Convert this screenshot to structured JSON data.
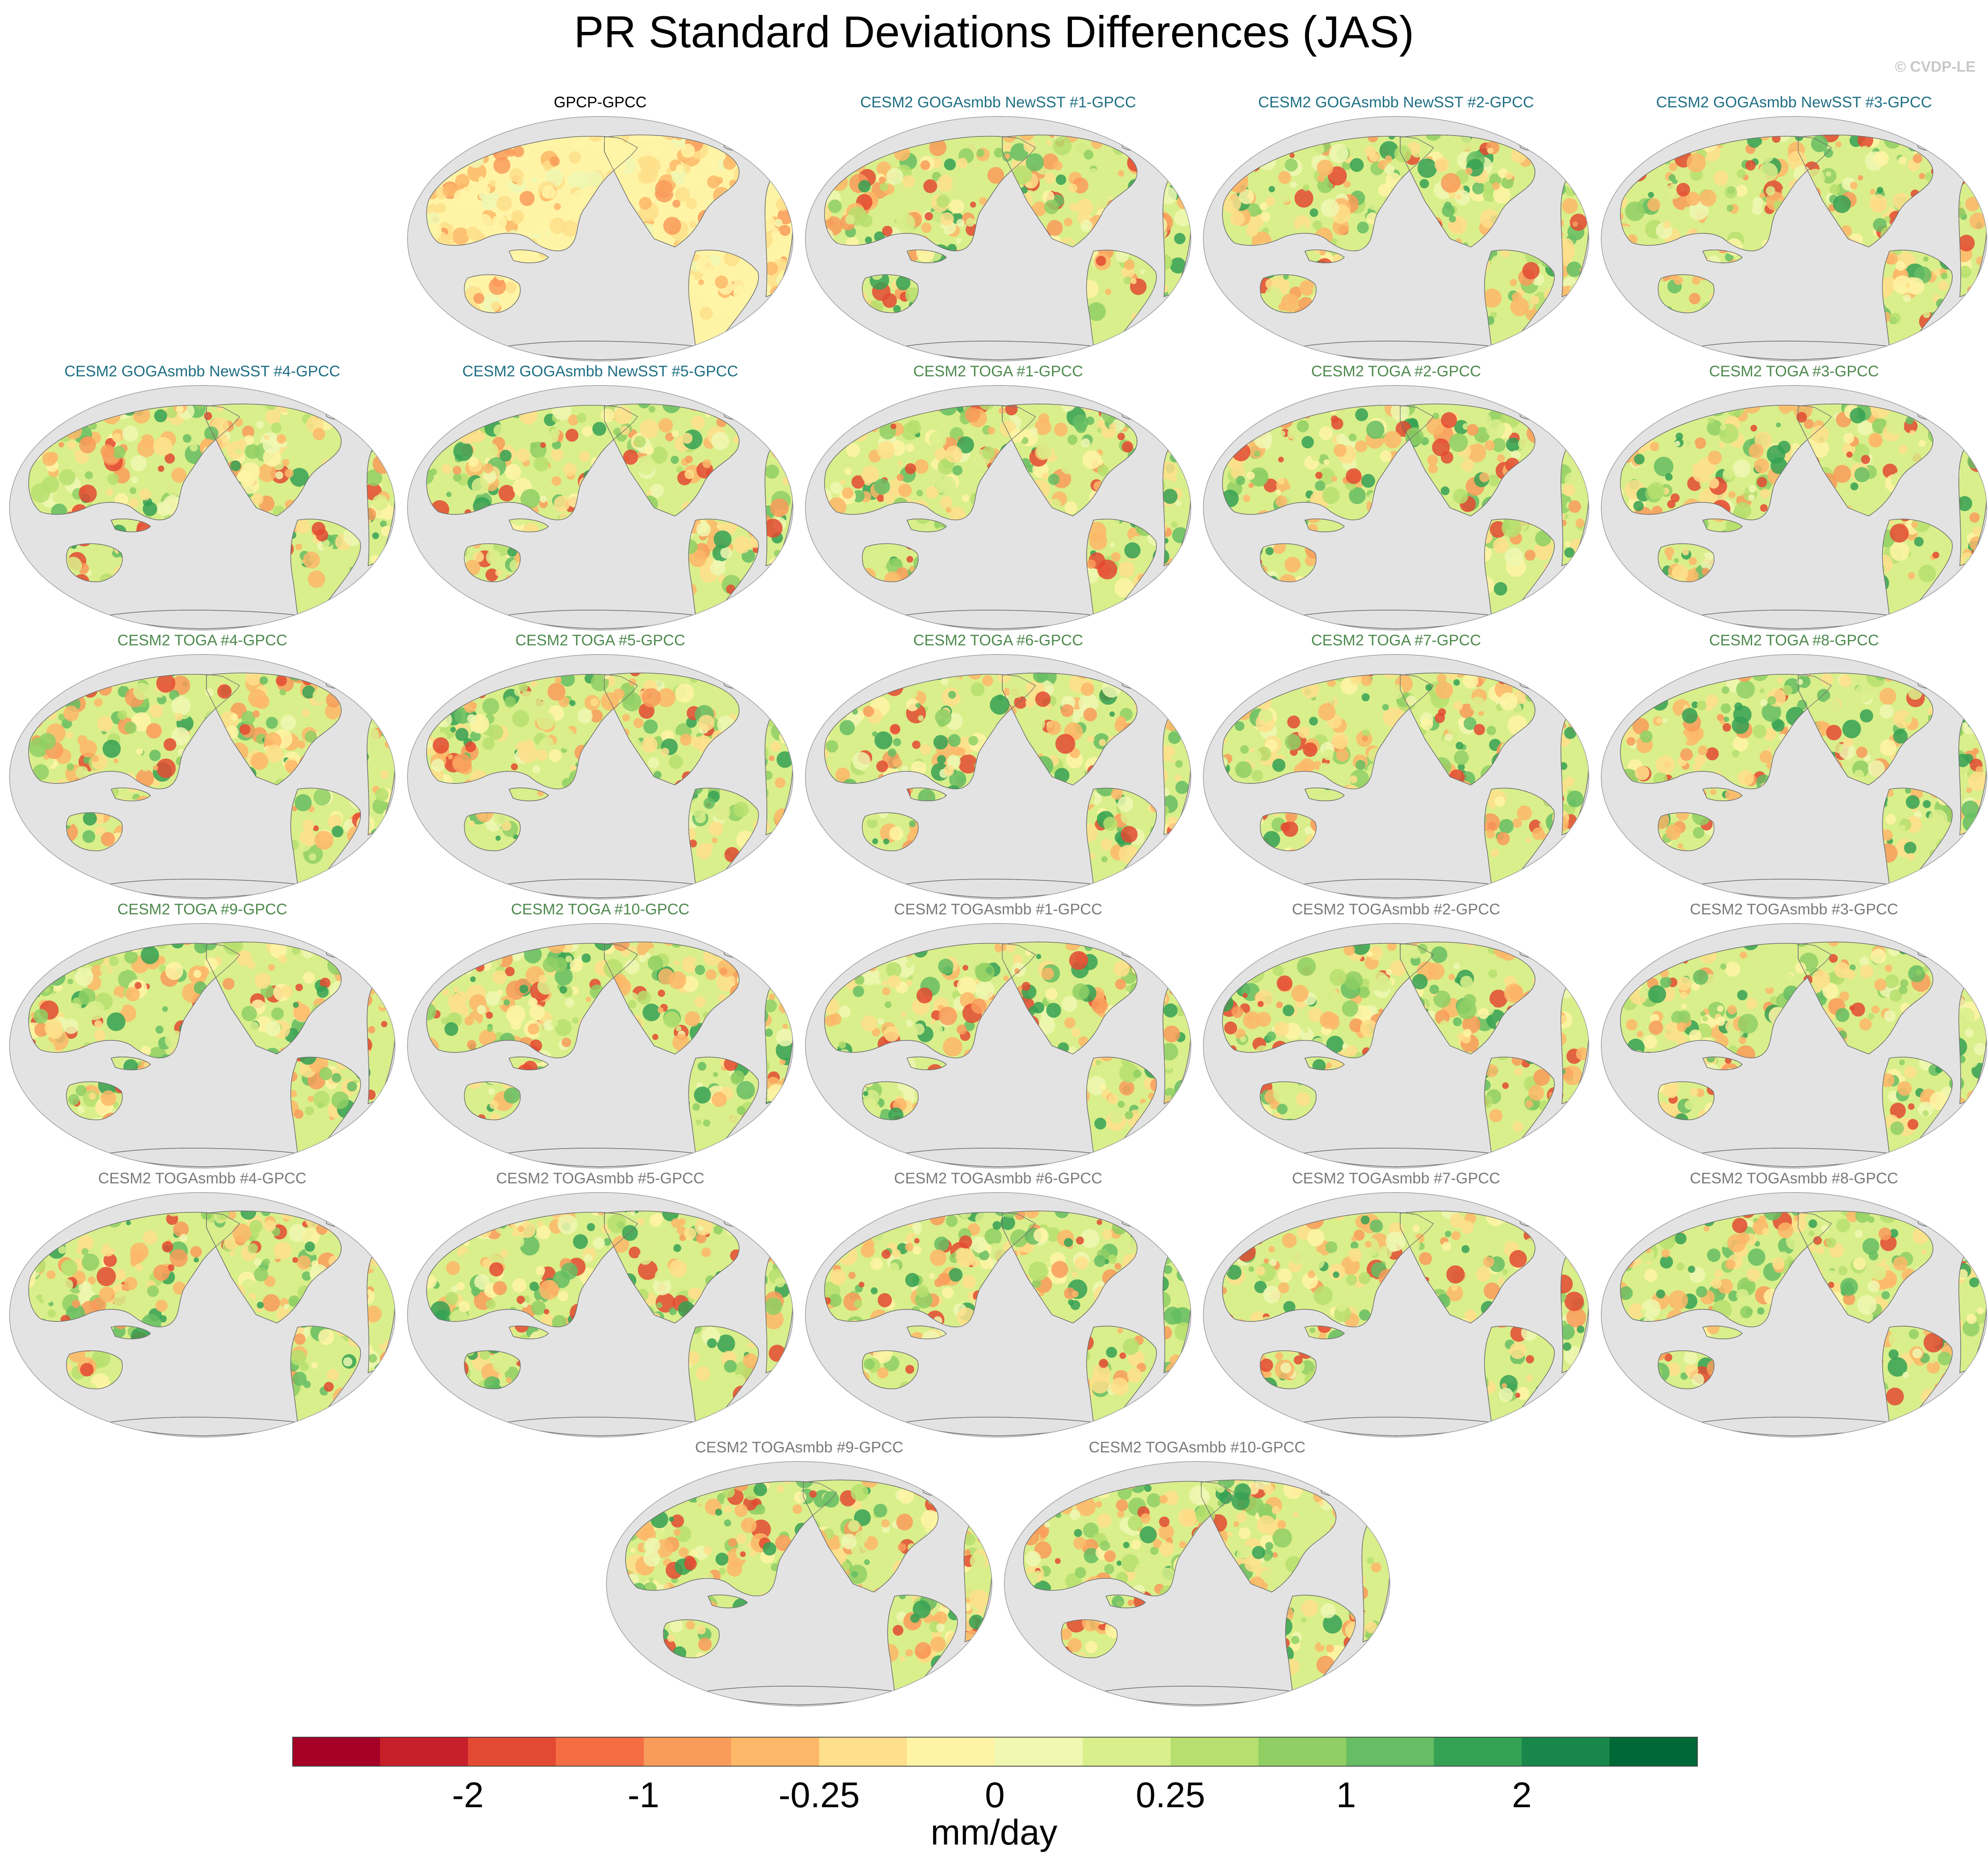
{
  "title": "PR Standard Deviations Differences (JAS)",
  "watermark": "© CVDP-LE",
  "colors": {
    "ocean": "#e3e3e3",
    "title_obs": "#000000",
    "title_goga": "#1f6f84",
    "title_toga": "#4e8a4e",
    "title_togasmbb": "#7a7a7a"
  },
  "panels": [
    {
      "title": "GPCP-GPCC",
      "group": "obs"
    },
    {
      "title": "CESM2 GOGAsmbb NewSST #1-GPCC",
      "group": "goga"
    },
    {
      "title": "CESM2 GOGAsmbb NewSST #2-GPCC",
      "group": "goga"
    },
    {
      "title": "CESM2 GOGAsmbb NewSST #3-GPCC",
      "group": "goga"
    },
    {
      "title": "CESM2 GOGAsmbb NewSST #4-GPCC",
      "group": "goga"
    },
    {
      "title": "CESM2 GOGAsmbb NewSST #5-GPCC",
      "group": "goga"
    },
    {
      "title": "CESM2 TOGA #1-GPCC",
      "group": "toga"
    },
    {
      "title": "CESM2 TOGA #2-GPCC",
      "group": "toga"
    },
    {
      "title": "CESM2 TOGA #3-GPCC",
      "group": "toga"
    },
    {
      "title": "CESM2 TOGA #4-GPCC",
      "group": "toga"
    },
    {
      "title": "CESM2 TOGA #5-GPCC",
      "group": "toga"
    },
    {
      "title": "CESM2 TOGA #6-GPCC",
      "group": "toga"
    },
    {
      "title": "CESM2 TOGA #7-GPCC",
      "group": "toga"
    },
    {
      "title": "CESM2 TOGA #8-GPCC",
      "group": "toga"
    },
    {
      "title": "CESM2 TOGA #9-GPCC",
      "group": "toga"
    },
    {
      "title": "CESM2 TOGA #10-GPCC",
      "group": "toga"
    },
    {
      "title": "CESM2 TOGAsmbb #1-GPCC",
      "group": "togasmbb"
    },
    {
      "title": "CESM2 TOGAsmbb #2-GPCC",
      "group": "togasmbb"
    },
    {
      "title": "CESM2 TOGAsmbb #3-GPCC",
      "group": "togasmbb"
    },
    {
      "title": "CESM2 TOGAsmbb #4-GPCC",
      "group": "togasmbb"
    },
    {
      "title": "CESM2 TOGAsmbb #5-GPCC",
      "group": "togasmbb"
    },
    {
      "title": "CESM2 TOGAsmbb #6-GPCC",
      "group": "togasmbb"
    },
    {
      "title": "CESM2 TOGAsmbb #7-GPCC",
      "group": "togasmbb"
    },
    {
      "title": "CESM2 TOGAsmbb #8-GPCC",
      "group": "togasmbb"
    },
    {
      "title": "CESM2 TOGAsmbb #9-GPCC",
      "group": "togasmbb"
    },
    {
      "title": "CESM2 TOGAsmbb #10-GPCC",
      "group": "togasmbb"
    }
  ],
  "colorbar": {
    "unit": "mm/day",
    "colors": [
      "#a50026",
      "#c8202a",
      "#e34a33",
      "#f46d43",
      "#f99b5a",
      "#fdb768",
      "#fedf8b",
      "#fff4a6",
      "#eff7b1",
      "#d9ef8b",
      "#b6df6f",
      "#8fcf64",
      "#66bd63",
      "#35a153",
      "#17874a",
      "#006837"
    ],
    "tick_labels": [
      {
        "label": "-2",
        "boundary": 2
      },
      {
        "label": "-1",
        "boundary": 4
      },
      {
        "label": "-0.25",
        "boundary": 6
      },
      {
        "label": "0",
        "boundary": 8
      },
      {
        "label": "0.25",
        "boundary": 10
      },
      {
        "label": "1",
        "boundary": 12
      },
      {
        "label": "2",
        "boundary": 14
      }
    ]
  }
}
